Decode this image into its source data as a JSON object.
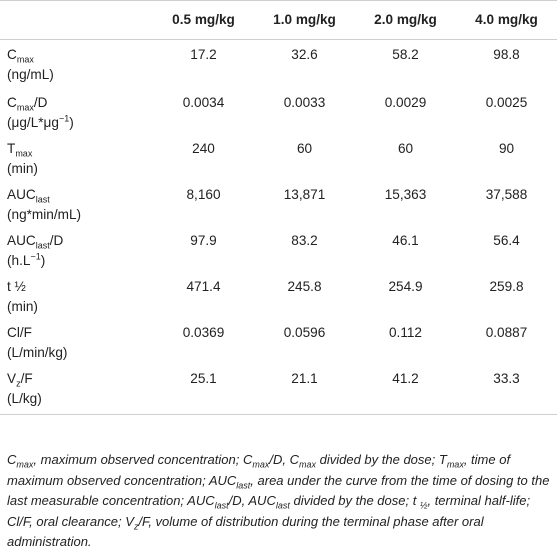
{
  "table": {
    "columns": [
      "",
      "0.5 mg/kg",
      "1.0 mg/kg",
      "2.0 mg/kg",
      "4.0 mg/kg"
    ],
    "rows": [
      {
        "name_main": "C",
        "name_sub": "max",
        "name_rest": "",
        "unit_main": "(ng/mL)",
        "unit_sup": "",
        "unit_tail": "",
        "values": [
          "17.2",
          "32.6",
          "58.2",
          "98.8"
        ]
      },
      {
        "name_main": "C",
        "name_sub": "max",
        "name_rest": "/D",
        "unit_main": "(μg/L*μg",
        "unit_sup": "−1",
        "unit_tail": ")",
        "values": [
          "0.0034",
          "0.0033",
          "0.0029",
          "0.0025"
        ]
      },
      {
        "name_main": "T",
        "name_sub": "max",
        "name_rest": "",
        "unit_main": "(min)",
        "unit_sup": "",
        "unit_tail": "",
        "values": [
          "240",
          "60",
          "60",
          "90"
        ]
      },
      {
        "name_main": "AUC",
        "name_sub": "last",
        "name_rest": "",
        "unit_main": "(ng*min/mL)",
        "unit_sup": "",
        "unit_tail": "",
        "values": [
          "8,160",
          "13,871",
          "15,363",
          "37,588"
        ]
      },
      {
        "name_main": "AUC",
        "name_sub": "last",
        "name_rest": "/D",
        "unit_main": "(h.L",
        "unit_sup": "−1",
        "unit_tail": ")",
        "values": [
          "97.9",
          "83.2",
          "46.1",
          "56.4"
        ]
      },
      {
        "name_main": "t ½",
        "name_sub": "",
        "name_rest": "",
        "unit_main": "(min)",
        "unit_sup": "",
        "unit_tail": "",
        "values": [
          "471.4",
          "245.8",
          "254.9",
          "259.8"
        ]
      },
      {
        "name_main": "Cl/F",
        "name_sub": "",
        "name_rest": "",
        "unit_main": "(L/min/kg)",
        "unit_sup": "",
        "unit_tail": "",
        "values": [
          "0.0369",
          "0.0596",
          "0.112",
          "0.0887"
        ]
      },
      {
        "name_main": "V",
        "name_sub": "z",
        "name_rest": "/F",
        "unit_main": "(L/kg)",
        "unit_sup": "",
        "unit_tail": "",
        "values": [
          "25.1",
          "21.1",
          "41.2",
          "33.3"
        ]
      }
    ]
  },
  "footnote": {
    "parts": [
      {
        "t": "C"
      },
      {
        "s": "max"
      },
      {
        "t": ", maximum observed concentration; C"
      },
      {
        "s": "max"
      },
      {
        "t": "/D, C"
      },
      {
        "s": "max"
      },
      {
        "t": " divided by the dose; T"
      },
      {
        "s": "max"
      },
      {
        "t": ", time of maximum observed concentration; AUC"
      },
      {
        "s": "last"
      },
      {
        "t": ", area under the curve from the time of dosing to the last measurable concentration; AUC"
      },
      {
        "s": "last"
      },
      {
        "t": "/D, AUC"
      },
      {
        "s": "last"
      },
      {
        "t": " divided by the dose; t "
      },
      {
        "s": "½"
      },
      {
        "t": ", terminal half-life; Cl/F, oral clearance; V"
      },
      {
        "s": "z"
      },
      {
        "t": "/F, volume of distribution during the terminal phase after oral administration."
      }
    ]
  }
}
